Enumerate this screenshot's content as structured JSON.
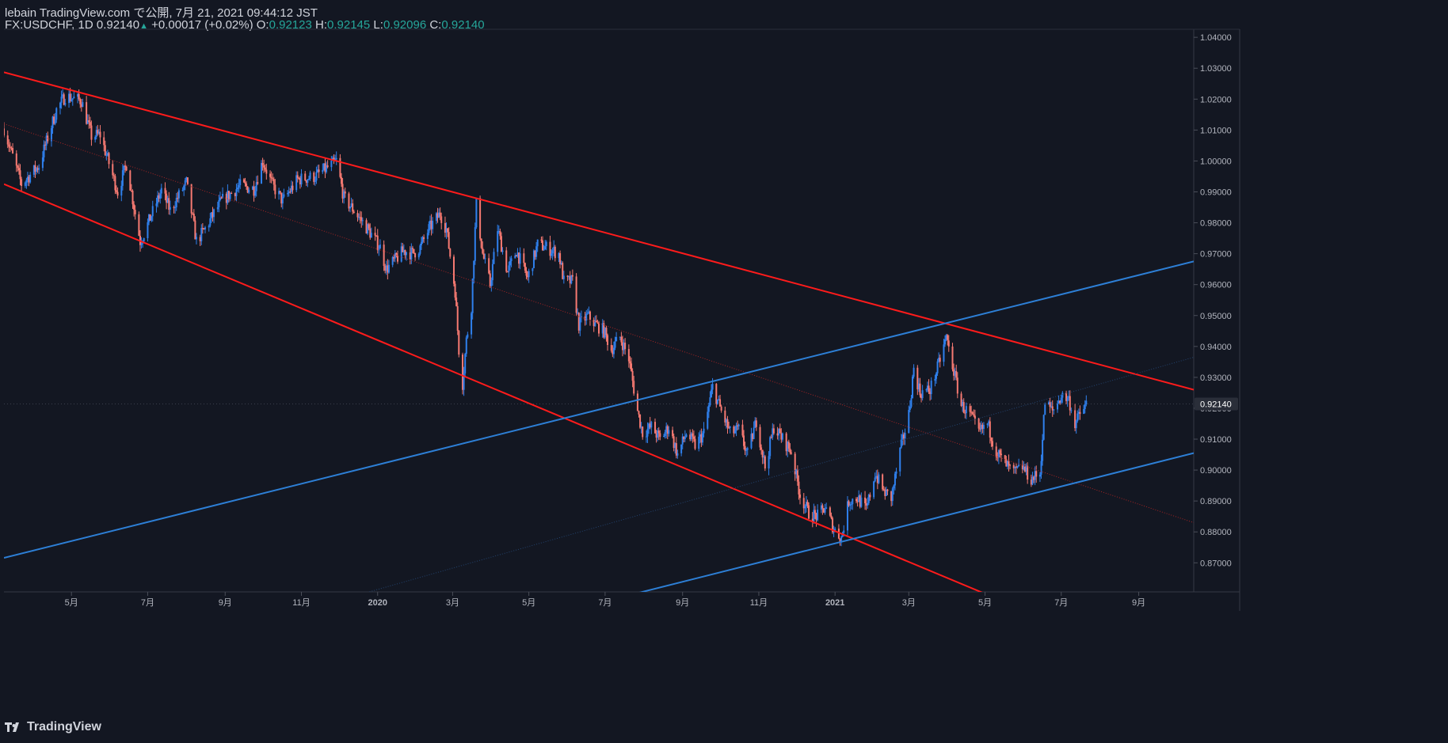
{
  "header": {
    "line1": "lebain TradingView.com で公開, 7月 21, 2021 09:44:12 JST",
    "symbol": "FX:USDCHF, 1D",
    "last": "0.92140",
    "change": "+0.00017 (+0.02%)",
    "o_label": "O:",
    "o_value": "0.92123",
    "h_label": "H:",
    "h_value": "0.92145",
    "l_label": "L:",
    "l_value": "0.92096",
    "c_label": "C:",
    "c_value": "0.92140"
  },
  "brand": {
    "text": "TradingView",
    "icon": "tradingview-logo-icon"
  },
  "colors": {
    "background": "#131722",
    "up": "#2f80ed",
    "down": "#f77a72",
    "red_line": "#ff1b1b",
    "blue_line": "#2d7fd6",
    "axis_text": "#b2b5be",
    "price_label_bg": "#2a2e39"
  },
  "chart_data": {
    "type": "candlestick",
    "symbol": "FX:USDCHF",
    "interval": "1D",
    "y_axis_ticks": [
      "1.04000",
      "1.03000",
      "1.02000",
      "1.01000",
      "1.00000",
      "0.99000",
      "0.98000",
      "0.97000",
      "0.96000",
      "0.95000",
      "0.94000",
      "0.93000",
      "0.92000",
      "0.91000",
      "0.90000",
      "0.89000",
      "0.88000",
      "0.87000"
    ],
    "ylim": [
      0.8606,
      1.0426
    ],
    "x_axis_ticks": [
      {
        "label": "5月",
        "date": "2019-05-01"
      },
      {
        "label": "7月",
        "date": "2019-07-01"
      },
      {
        "label": "9月",
        "date": "2019-09-01"
      },
      {
        "label": "11月",
        "date": "2019-11-01"
      },
      {
        "label": "2020",
        "date": "2020-01-01"
      },
      {
        "label": "3月",
        "date": "2020-03-01"
      },
      {
        "label": "5月",
        "date": "2020-05-01"
      },
      {
        "label": "7月",
        "date": "2020-07-01"
      },
      {
        "label": "9月",
        "date": "2020-09-01"
      },
      {
        "label": "11月",
        "date": "2020-11-01"
      },
      {
        "label": "2021",
        "date": "2021-01-01"
      },
      {
        "label": "3月",
        "date": "2021-03-01"
      },
      {
        "label": "5月",
        "date": "2021-05-01"
      },
      {
        "label": "7月",
        "date": "2021-07-01"
      },
      {
        "label": "9月",
        "date": "2021-09-01"
      }
    ],
    "xlim": [
      "2019-03-08",
      "2021-10-15"
    ],
    "last_price_label": "0.92140",
    "close_series": {
      "description": "approximate daily close path",
      "points": [
        [
          "2019-03-08",
          1.0105
        ],
        [
          "2019-03-22",
          0.9925
        ],
        [
          "2019-04-05",
          0.9985
        ],
        [
          "2019-04-19",
          1.0165
        ],
        [
          "2019-04-26",
          1.021
        ],
        [
          "2019-05-09",
          1.0195
        ],
        [
          "2019-05-17",
          1.008
        ],
        [
          "2019-05-24",
          1.0085
        ],
        [
          "2019-06-07",
          0.99
        ],
        [
          "2019-06-14",
          0.999
        ],
        [
          "2019-06-25",
          0.974
        ],
        [
          "2019-06-28",
          0.9765
        ],
        [
          "2019-07-12",
          0.9905
        ],
        [
          "2019-07-19",
          0.984
        ],
        [
          "2019-08-01",
          0.993
        ],
        [
          "2019-08-09",
          0.974
        ],
        [
          "2019-08-16",
          0.978
        ],
        [
          "2019-08-23",
          0.983
        ],
        [
          "2019-08-29",
          0.987
        ],
        [
          "2019-09-13",
          0.992
        ],
        [
          "2019-09-24",
          0.991
        ],
        [
          "2019-10-01",
          1.0
        ],
        [
          "2019-10-09",
          0.992
        ],
        [
          "2019-10-17",
          0.987
        ],
        [
          "2019-10-29",
          0.994
        ],
        [
          "2019-11-12",
          0.995
        ],
        [
          "2019-11-26",
          0.999
        ],
        [
          "2019-11-29",
          1.0
        ],
        [
          "2019-12-05",
          0.988
        ],
        [
          "2019-12-13",
          0.984
        ],
        [
          "2019-12-24",
          0.978
        ],
        [
          "2020-01-03",
          0.972
        ],
        [
          "2020-01-08",
          0.965
        ],
        [
          "2020-01-15",
          0.968
        ],
        [
          "2020-01-22",
          0.971
        ],
        [
          "2020-01-29",
          0.97
        ],
        [
          "2020-02-04",
          0.972
        ],
        [
          "2020-02-11",
          0.978
        ],
        [
          "2020-02-20",
          0.983
        ],
        [
          "2020-02-25",
          0.978
        ],
        [
          "2020-03-03",
          0.958
        ],
        [
          "2020-03-06",
          0.939
        ],
        [
          "2020-03-09",
          0.928
        ],
        [
          "2020-03-12",
          0.942
        ],
        [
          "2020-03-16",
          0.953
        ],
        [
          "2020-03-20",
          0.986
        ],
        [
          "2020-03-25",
          0.97
        ],
        [
          "2020-03-31",
          0.96
        ],
        [
          "2020-04-06",
          0.978
        ],
        [
          "2020-04-14",
          0.964
        ],
        [
          "2020-04-21",
          0.971
        ],
        [
          "2020-04-30",
          0.962
        ],
        [
          "2020-05-08",
          0.973
        ],
        [
          "2020-05-15",
          0.972
        ],
        [
          "2020-05-25",
          0.97
        ],
        [
          "2020-05-29",
          0.961
        ],
        [
          "2020-06-05",
          0.961
        ],
        [
          "2020-06-10",
          0.947
        ],
        [
          "2020-06-17",
          0.95
        ],
        [
          "2020-06-24",
          0.947
        ],
        [
          "2020-06-30",
          0.945
        ],
        [
          "2020-07-06",
          0.939
        ],
        [
          "2020-07-13",
          0.943
        ],
        [
          "2020-07-20",
          0.936
        ],
        [
          "2020-07-27",
          0.919
        ],
        [
          "2020-07-31",
          0.912
        ],
        [
          "2020-08-07",
          0.914
        ],
        [
          "2020-08-14",
          0.91
        ],
        [
          "2020-08-21",
          0.914
        ],
        [
          "2020-08-28",
          0.905
        ],
        [
          "2020-09-04",
          0.912
        ],
        [
          "2020-09-11",
          0.908
        ],
        [
          "2020-09-18",
          0.912
        ],
        [
          "2020-09-25",
          0.927
        ],
        [
          "2020-10-02",
          0.919
        ],
        [
          "2020-10-09",
          0.912
        ],
        [
          "2020-10-16",
          0.913
        ],
        [
          "2020-10-23",
          0.905
        ],
        [
          "2020-10-30",
          0.916
        ],
        [
          "2020-11-06",
          0.901
        ],
        [
          "2020-11-13",
          0.914
        ],
        [
          "2020-11-20",
          0.91
        ],
        [
          "2020-11-27",
          0.906
        ],
        [
          "2020-12-04",
          0.892
        ],
        [
          "2020-12-11",
          0.886
        ],
        [
          "2020-12-18",
          0.885
        ],
        [
          "2020-12-24",
          0.888
        ],
        [
          "2020-12-31",
          0.881
        ],
        [
          "2021-01-06",
          0.878
        ],
        [
          "2021-01-12",
          0.89
        ],
        [
          "2021-01-19",
          0.891
        ],
        [
          "2021-01-26",
          0.887
        ],
        [
          "2021-02-02",
          0.899
        ],
        [
          "2021-02-09",
          0.893
        ],
        [
          "2021-02-15",
          0.891
        ],
        [
          "2021-02-22",
          0.906
        ],
        [
          "2021-03-01",
          0.918
        ],
        [
          "2021-03-05",
          0.933
        ],
        [
          "2021-03-10",
          0.925
        ],
        [
          "2021-03-18",
          0.926
        ],
        [
          "2021-03-24",
          0.933
        ],
        [
          "2021-03-31",
          0.943
        ],
        [
          "2021-04-06",
          0.932
        ],
        [
          "2021-04-12",
          0.921
        ],
        [
          "2021-04-19",
          0.918
        ],
        [
          "2021-04-26",
          0.912
        ],
        [
          "2021-05-03",
          0.915
        ],
        [
          "2021-05-10",
          0.906
        ],
        [
          "2021-05-17",
          0.902
        ],
        [
          "2021-05-24",
          0.899
        ],
        [
          "2021-05-31",
          0.901
        ],
        [
          "2021-06-07",
          0.897
        ],
        [
          "2021-06-14",
          0.899
        ],
        [
          "2021-06-18",
          0.922
        ],
        [
          "2021-06-24",
          0.919
        ],
        [
          "2021-07-01",
          0.924
        ],
        [
          "2021-07-07",
          0.923
        ],
        [
          "2021-07-12",
          0.915
        ],
        [
          "2021-07-16",
          0.918
        ],
        [
          "2021-07-21",
          0.9214
        ]
      ]
    },
    "trendlines": [
      {
        "color": "red",
        "style": "solid",
        "from": [
          "2019-03-08",
          1.0287
        ],
        "to": [
          "2021-10-15",
          0.926
        ]
      },
      {
        "color": "red",
        "style": "solid",
        "from": [
          "2019-03-08",
          0.9925
        ],
        "to": [
          "2021-05-01",
          0.86
        ]
      },
      {
        "color": "red",
        "style": "dotted",
        "from": [
          "2019-03-08",
          1.012
        ],
        "to": [
          "2021-10-15",
          0.883
        ]
      },
      {
        "color": "blue",
        "style": "solid",
        "from": [
          "2019-03-08",
          0.8716
        ],
        "to": [
          "2021-10-15",
          0.9675
        ]
      },
      {
        "color": "blue",
        "style": "solid",
        "from": [
          "2020-07-25",
          0.86
        ],
        "to": [
          "2021-10-15",
          0.9055
        ]
      },
      {
        "color": "blue",
        "style": "dotted",
        "from": [
          "2019-12-20",
          0.86
        ],
        "to": [
          "2021-10-15",
          0.9365
        ]
      }
    ],
    "grid": false,
    "legend": "none"
  }
}
